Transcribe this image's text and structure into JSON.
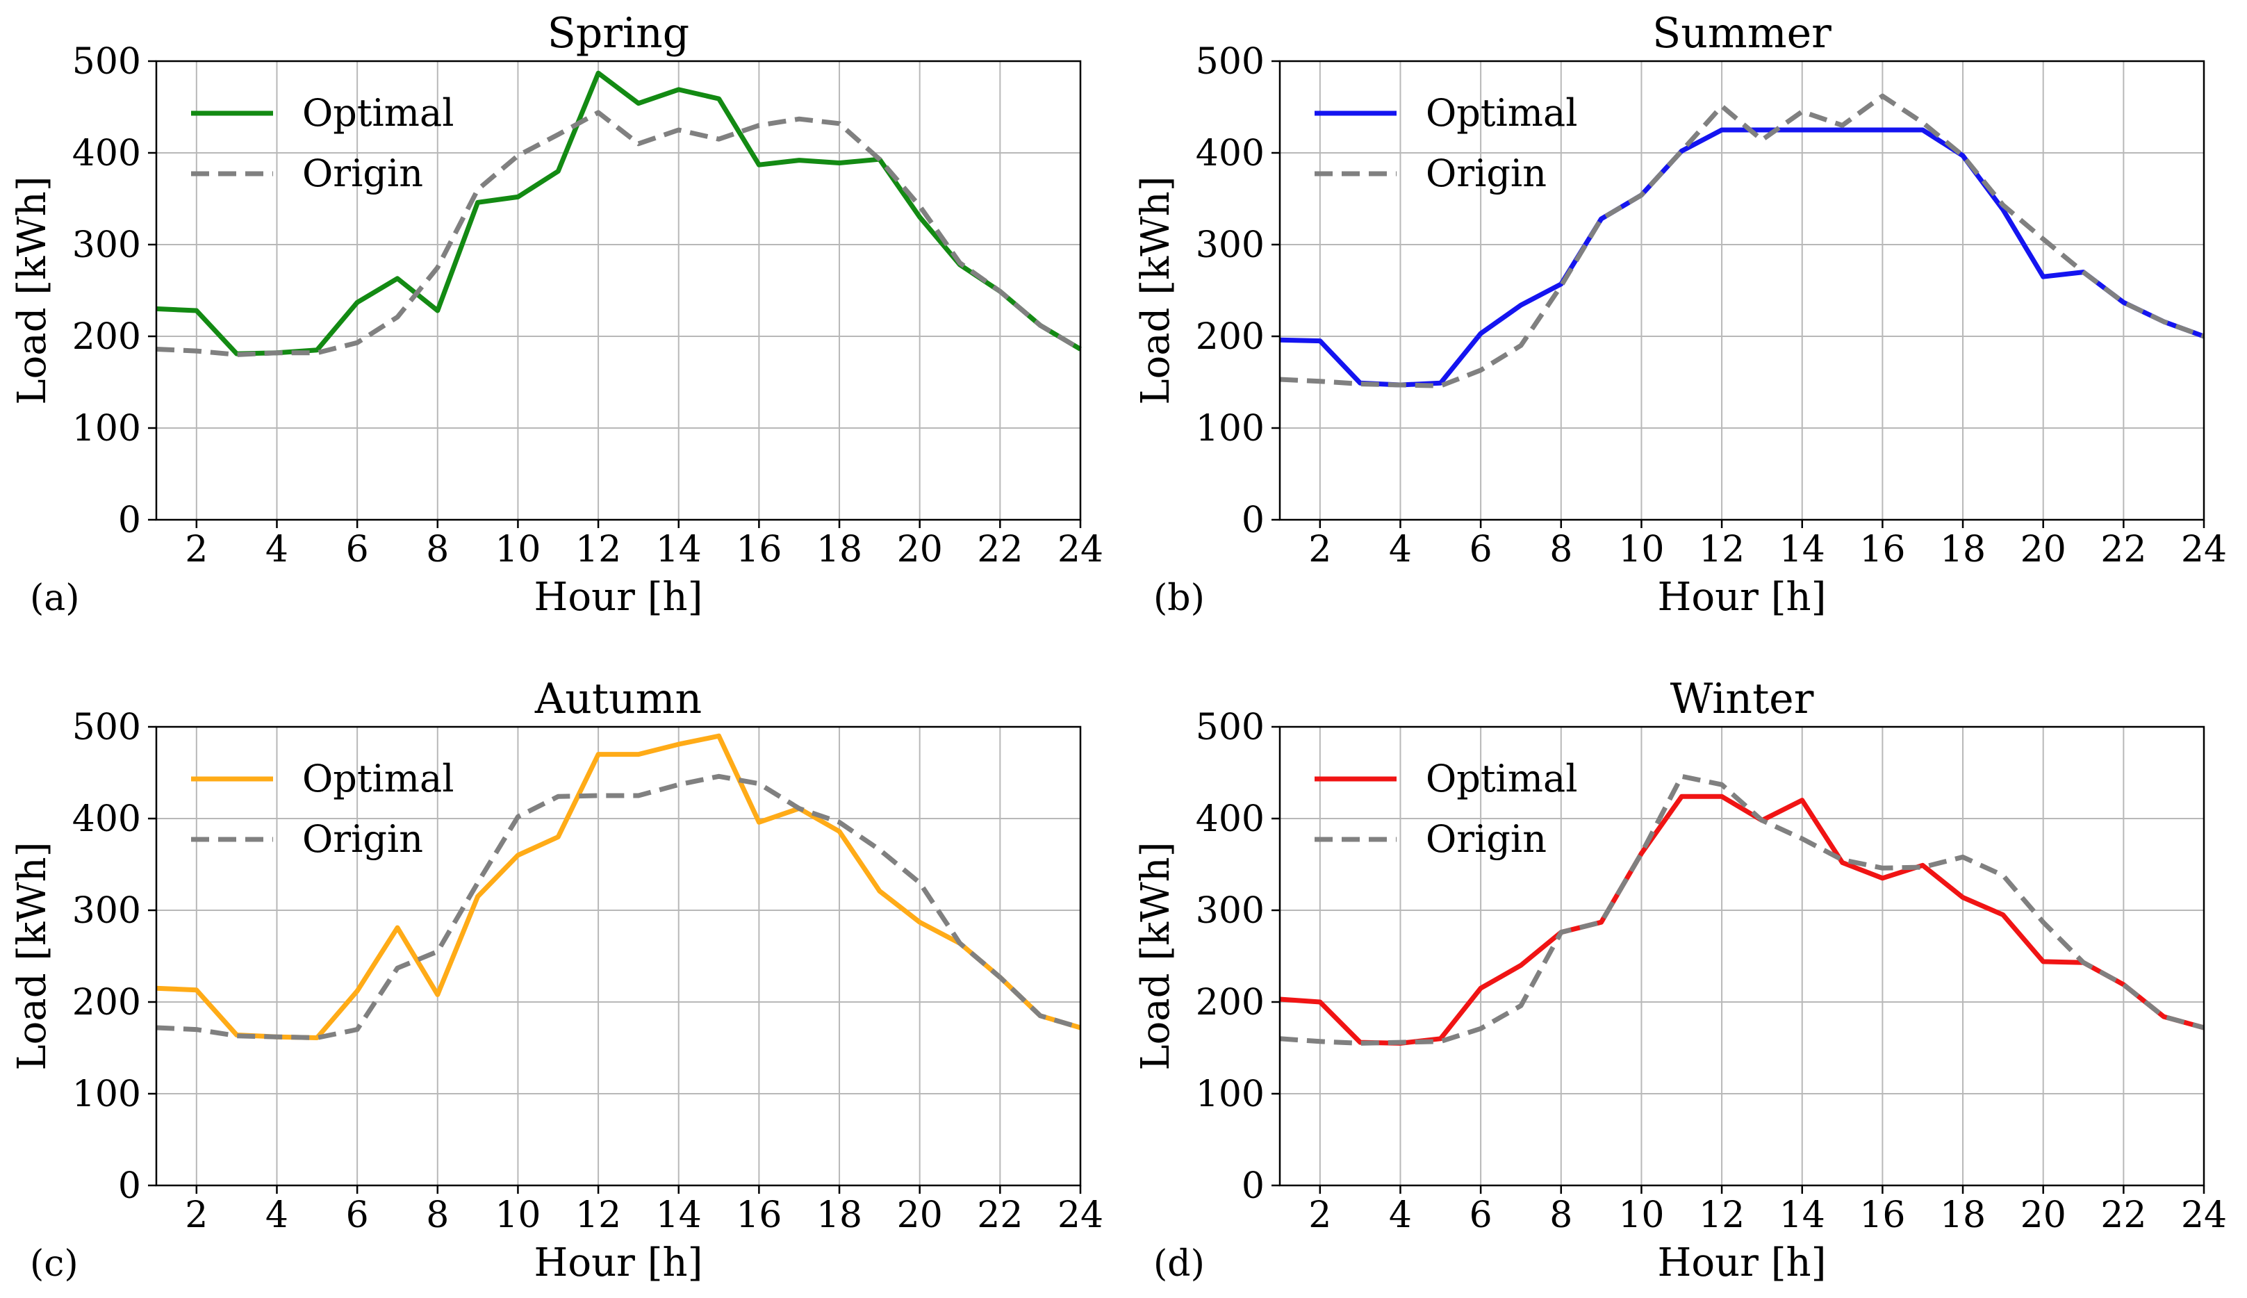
{
  "figure": {
    "panels": [
      {
        "id": "a",
        "label": "(a)",
        "title": "Spring",
        "optimal_color": "#138a13"
      },
      {
        "id": "b",
        "label": "(b)",
        "title": "Summer",
        "optimal_color": "#1414f0"
      },
      {
        "id": "c",
        "label": "(c)",
        "title": "Autumn",
        "optimal_color": "#ffab17"
      },
      {
        "id": "d",
        "label": "(d)",
        "title": "Winter",
        "optimal_color": "#f01414"
      }
    ],
    "origin_color": "#808080",
    "xlabel": "Hour [h]",
    "ylabel": "Load [kWh]",
    "legend": {
      "optimal": "Optimal",
      "origin": "Origin",
      "placement": "top-left"
    }
  },
  "chart_data": [
    {
      "type": "line",
      "title": "Spring",
      "panel_label": "(a)",
      "xlabel": "Hour [h]",
      "ylabel": "Load [kWh]",
      "xlim": [
        1,
        24
      ],
      "ylim": [
        0,
        500
      ],
      "xticks": [
        2,
        4,
        6,
        8,
        10,
        12,
        14,
        16,
        18,
        20,
        22,
        24
      ],
      "yticks": [
        0,
        100,
        200,
        300,
        400,
        500
      ],
      "xtick_labels": [
        "2",
        "4",
        "6",
        "8",
        "10",
        "12",
        "14",
        "16",
        "18",
        "20",
        "22",
        "24"
      ],
      "ytick_labels": [
        "0",
        "100",
        "200",
        "300",
        "400",
        "500"
      ],
      "grid": true,
      "legend": "top-left",
      "x": [
        1,
        2,
        3,
        4,
        5,
        6,
        7,
        8,
        9,
        10,
        11,
        12,
        13,
        14,
        15,
        16,
        17,
        18,
        19,
        20,
        21,
        22,
        23,
        24
      ],
      "series": [
        {
          "name": "Optimal",
          "style": "solid",
          "color": "#138a13",
          "values": [
            230,
            228,
            181,
            182,
            185,
            237,
            263,
            228,
            346,
            352,
            380,
            487,
            454,
            469,
            459,
            387,
            392,
            389,
            393,
            330,
            278,
            249,
            212,
            186
          ]
        },
        {
          "name": "Origin",
          "style": "dashed",
          "color": "#808080",
          "values": [
            186,
            184,
            180,
            182,
            182,
            193,
            221,
            275,
            360,
            397,
            420,
            444,
            410,
            425,
            415,
            430,
            437,
            432,
            393,
            342,
            280,
            249,
            212,
            186
          ]
        }
      ]
    },
    {
      "type": "line",
      "title": "Summer",
      "panel_label": "(b)",
      "xlabel": "Hour [h]",
      "ylabel": "Load [kWh]",
      "xlim": [
        1,
        24
      ],
      "ylim": [
        0,
        500
      ],
      "xticks": [
        2,
        4,
        6,
        8,
        10,
        12,
        14,
        16,
        18,
        20,
        22,
        24
      ],
      "yticks": [
        0,
        100,
        200,
        300,
        400,
        500
      ],
      "xtick_labels": [
        "2",
        "4",
        "6",
        "8",
        "10",
        "12",
        "14",
        "16",
        "18",
        "20",
        "22",
        "24"
      ],
      "ytick_labels": [
        "0",
        "100",
        "200",
        "300",
        "400",
        "500"
      ],
      "grid": true,
      "legend": "top-left",
      "x": [
        1,
        2,
        3,
        4,
        5,
        6,
        7,
        8,
        9,
        10,
        11,
        12,
        13,
        14,
        15,
        16,
        17,
        18,
        19,
        20,
        21,
        22,
        23,
        24
      ],
      "series": [
        {
          "name": "Optimal",
          "style": "solid",
          "color": "#1414f0",
          "values": [
            196,
            195,
            149,
            147,
            149,
            203,
            234,
            257,
            328,
            354,
            402,
            425,
            425,
            425,
            425,
            425,
            425,
            397,
            338,
            265,
            270,
            237,
            216,
            200
          ]
        },
        {
          "name": "Origin",
          "style": "dashed",
          "color": "#808080",
          "values": [
            153,
            151,
            148,
            147,
            146,
            163,
            190,
            255,
            328,
            354,
            402,
            451,
            414,
            445,
            430,
            462,
            433,
            397,
            343,
            306,
            270,
            237,
            216,
            200
          ]
        }
      ]
    },
    {
      "type": "line",
      "title": "Autumn",
      "panel_label": "(c)",
      "xlabel": "Hour [h]",
      "ylabel": "Load [kWh]",
      "xlim": [
        1,
        24
      ],
      "ylim": [
        0,
        500
      ],
      "xticks": [
        2,
        4,
        6,
        8,
        10,
        12,
        14,
        16,
        18,
        20,
        22,
        24
      ],
      "yticks": [
        0,
        100,
        200,
        300,
        400,
        500
      ],
      "xtick_labels": [
        "2",
        "4",
        "6",
        "8",
        "10",
        "12",
        "14",
        "16",
        "18",
        "20",
        "22",
        "24"
      ],
      "ytick_labels": [
        "0",
        "100",
        "200",
        "300",
        "400",
        "500"
      ],
      "grid": true,
      "legend": "top-left",
      "x": [
        1,
        2,
        3,
        4,
        5,
        6,
        7,
        8,
        9,
        10,
        11,
        12,
        13,
        14,
        15,
        16,
        17,
        18,
        19,
        20,
        21,
        22,
        23,
        24
      ],
      "series": [
        {
          "name": "Optimal",
          "style": "solid",
          "color": "#ffab17",
          "values": [
            215,
            213,
            164,
            162,
            161,
            212,
            281,
            208,
            315,
            360,
            380,
            470,
            470,
            481,
            490,
            396,
            411,
            386,
            321,
            287,
            264,
            227,
            185,
            172
          ]
        },
        {
          "name": "Origin",
          "style": "dashed",
          "color": "#808080",
          "values": [
            172,
            170,
            163,
            162,
            161,
            170,
            237,
            255,
            330,
            402,
            424,
            425,
            425,
            437,
            446,
            438,
            411,
            396,
            366,
            330,
            264,
            227,
            185,
            172
          ]
        }
      ]
    },
    {
      "type": "line",
      "title": "Winter",
      "panel_label": "(d)",
      "xlabel": "Hour [h]",
      "ylabel": "Load [kWh]",
      "xlim": [
        1,
        24
      ],
      "ylim": [
        0,
        500
      ],
      "xticks": [
        2,
        4,
        6,
        8,
        10,
        12,
        14,
        16,
        18,
        20,
        22,
        24
      ],
      "yticks": [
        0,
        100,
        200,
        300,
        400,
        500
      ],
      "xtick_labels": [
        "2",
        "4",
        "6",
        "8",
        "10",
        "12",
        "14",
        "16",
        "18",
        "20",
        "22",
        "24"
      ],
      "ytick_labels": [
        "0",
        "100",
        "200",
        "300",
        "400",
        "500"
      ],
      "grid": true,
      "legend": "top-left",
      "x": [
        1,
        2,
        3,
        4,
        5,
        6,
        7,
        8,
        9,
        10,
        11,
        12,
        13,
        14,
        15,
        16,
        17,
        18,
        19,
        20,
        21,
        22,
        23,
        24
      ],
      "series": [
        {
          "name": "Optimal",
          "style": "solid",
          "color": "#f01414",
          "values": [
            203,
            200,
            156,
            155,
            160,
            215,
            240,
            276,
            287,
            362,
            424,
            424,
            398,
            420,
            352,
            335,
            349,
            314,
            295,
            244,
            243,
            219,
            184,
            172
          ]
        },
        {
          "name": "Origin",
          "style": "dashed",
          "color": "#808080",
          "values": [
            160,
            157,
            155,
            156,
            157,
            171,
            196,
            276,
            287,
            362,
            446,
            437,
            398,
            378,
            355,
            346,
            347,
            358,
            338,
            287,
            243,
            219,
            184,
            172
          ]
        }
      ]
    }
  ]
}
